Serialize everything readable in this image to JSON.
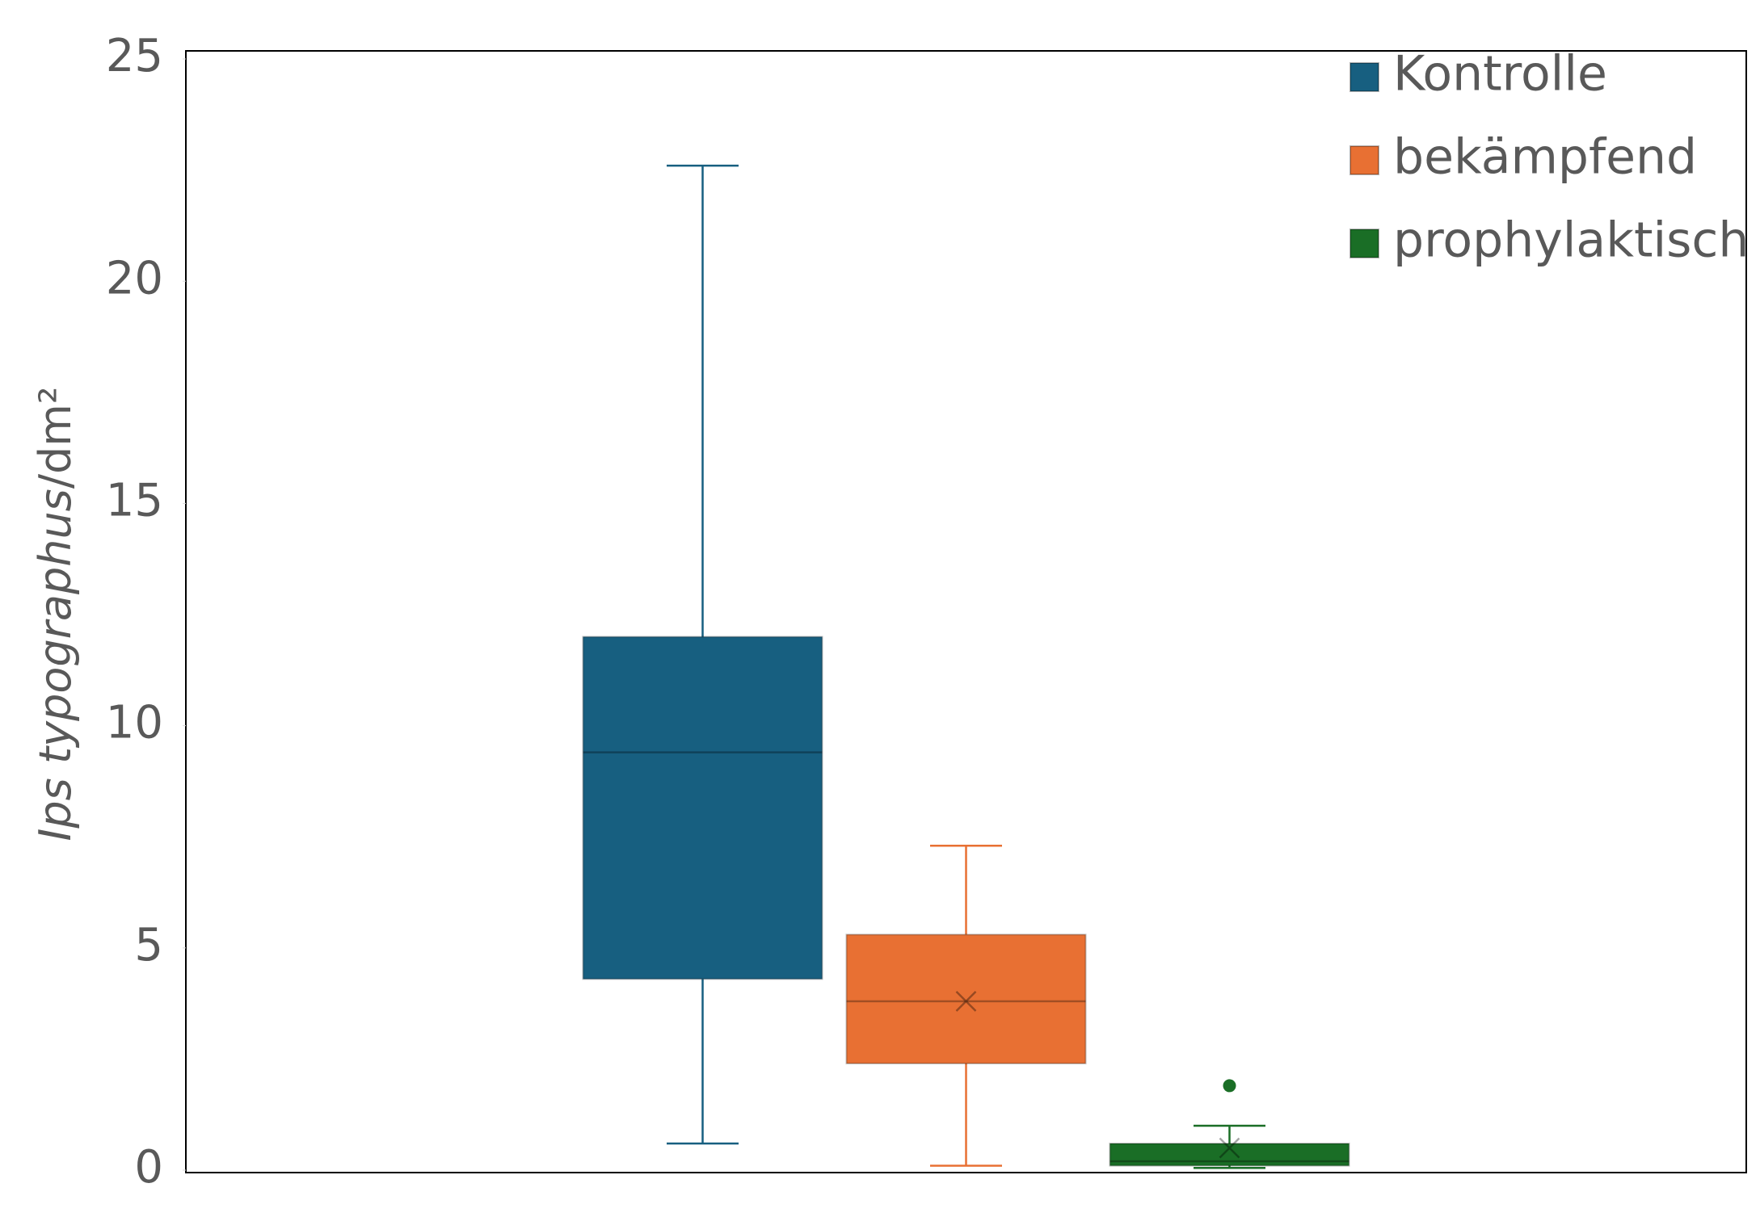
{
  "chart_data": {
    "type": "box",
    "ylabel": {
      "italic": "Ips typographus",
      "rest": "/dm²"
    },
    "ylim": [
      0,
      25
    ],
    "yticks": [
      0,
      5,
      10,
      15,
      20,
      25
    ],
    "legend": "top-right",
    "series": [
      {
        "name": "Kontrolle",
        "color": "#175f80",
        "whisker_low": 0.6,
        "q1": 4.3,
        "median": 9.4,
        "q3": 12.0,
        "whisker_high": 22.6,
        "outliers": []
      },
      {
        "name": "bekämpfend",
        "color": "#e87033",
        "whisker_low": 0.1,
        "q1": 2.4,
        "median": 3.8,
        "q3": 5.3,
        "whisker_high": 7.3,
        "mean": 3.8,
        "outliers": []
      },
      {
        "name": "prophylaktisch",
        "color": "#1a6e26",
        "whisker_low": 0.05,
        "q1": 0.1,
        "median": 0.2,
        "q3": 0.6,
        "whisker_high": 1.0,
        "mean": 0.5,
        "outliers": [
          1.9
        ]
      }
    ]
  }
}
